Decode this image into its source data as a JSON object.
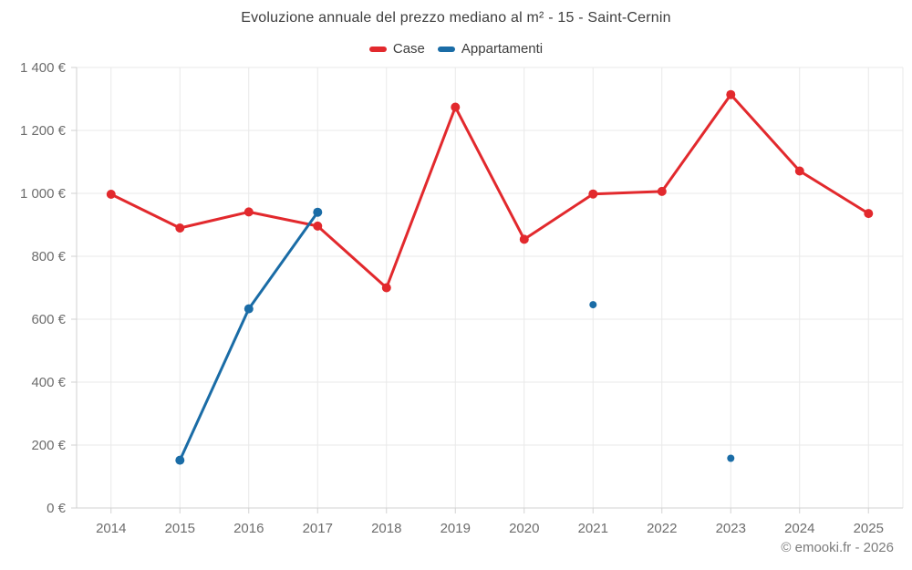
{
  "title": "Evoluzione annuale del prezzo mediano al m² - 15 - Saint-Cernin",
  "footer": "© emooki.fr - 2026",
  "colors": {
    "case_red": "#e2292d",
    "appartamenti_blue": "#1a6ca6",
    "gridline": "#e9e9e9",
    "axis": "#d2d2d2",
    "tick_label": "#6d6d6d",
    "title_text": "#3d3d3d",
    "footer_text": "#7c7c7c",
    "background": "#ffffff"
  },
  "chart_data": {
    "type": "line",
    "title": "Evoluzione annuale del prezzo mediano al m² - 15 - Saint-Cernin",
    "xlabel": "",
    "ylabel": "",
    "categories": [
      "2014",
      "2015",
      "2016",
      "2017",
      "2018",
      "2019",
      "2020",
      "2021",
      "2022",
      "2023",
      "2024",
      "2025"
    ],
    "series": [
      {
        "name": "Case",
        "color": "#e2292d",
        "values": [
          997,
          890,
          941,
          896,
          700,
          1274,
          854,
          998,
          1006,
          1314,
          1071,
          936
        ]
      },
      {
        "name": "Appartamenti",
        "color": "#1a6ca6",
        "values": [
          null,
          152,
          633,
          940,
          null,
          null,
          null,
          646,
          null,
          158,
          null,
          null
        ]
      }
    ],
    "ylim": [
      0,
      1400
    ],
    "ytick_values": [
      0,
      200,
      400,
      600,
      800,
      1000,
      1200,
      1400
    ],
    "ytick_labels": [
      "0 €",
      "200 €",
      "400 €",
      "600 €",
      "800 €",
      "1 000 €",
      "1 200 €",
      "1 400 €"
    ],
    "grid": true,
    "legend_position": "top"
  }
}
